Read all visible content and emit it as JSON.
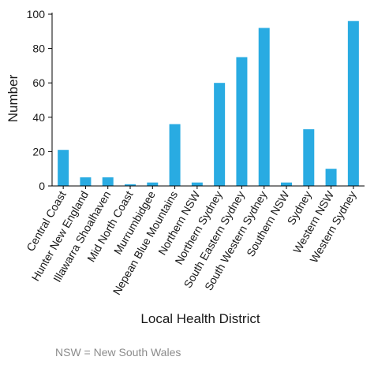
{
  "chart_data": {
    "type": "bar",
    "title": "",
    "xlabel": "Local Health District",
    "ylabel": "Number",
    "ylim": [
      0,
      100
    ],
    "yticks": [
      0,
      20,
      40,
      60,
      80,
      100
    ],
    "grid": false,
    "bar_color": "#29ABE2",
    "categories": [
      "Central Coast",
      "Hunter New England",
      "Illawarra Shoalhaven",
      "Mid North Coast",
      "Murrumbidgee",
      "Nepean Blue Mountains",
      "Northern NSW",
      "Northern Sydney",
      "South Eastern Sydney",
      "South Western Sydney",
      "Southern NSW",
      "Sydney",
      "Western NSW",
      "Western Sydney"
    ],
    "values": [
      21,
      5,
      5,
      1,
      2,
      36,
      2,
      60,
      75,
      92,
      2,
      33,
      10,
      96
    ]
  },
  "footnote": "NSW = New South Wales"
}
